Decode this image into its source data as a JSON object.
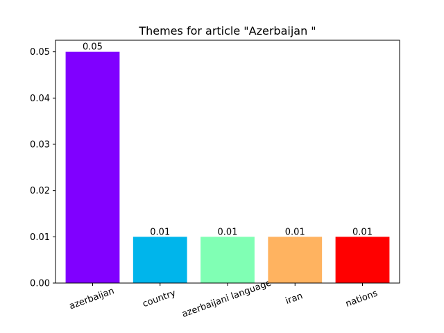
{
  "chart_data": {
    "type": "bar",
    "title": "Themes for article \"Azerbaijan \"",
    "xlabel": "",
    "ylabel": "",
    "categories": [
      "azerbaijan",
      "country",
      "azerbaijani language",
      "iran",
      "nations"
    ],
    "values": [
      0.05,
      0.01,
      0.01,
      0.01,
      0.01
    ],
    "data_labels": [
      "0.05",
      "0.01",
      "0.01",
      "0.01",
      "0.01"
    ],
    "colors": [
      "#8000ff",
      "#00b5eb",
      "#80ffb4",
      "#ffb360",
      "#ff0000"
    ],
    "ylim": [
      0,
      0.0525
    ],
    "yticks": [
      0.0,
      0.01,
      0.02,
      0.03,
      0.04,
      0.05
    ],
    "ytick_labels": [
      "0.00",
      "0.01",
      "0.02",
      "0.03",
      "0.04",
      "0.05"
    ],
    "grid": false,
    "legend": "none",
    "xtick_rotation": "slanted"
  }
}
